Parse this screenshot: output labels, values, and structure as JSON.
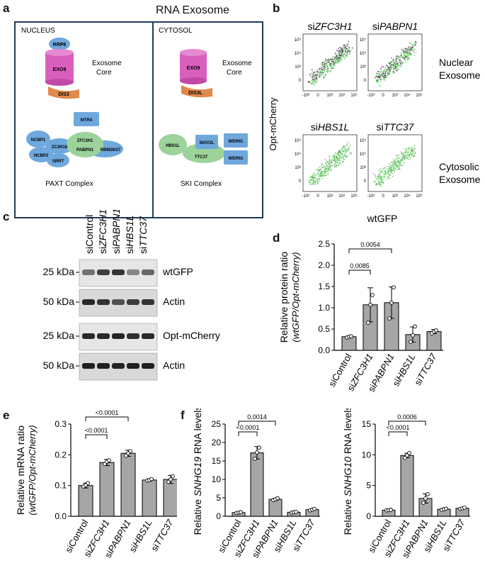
{
  "panels": {
    "a": {
      "label": "a",
      "title": "RNA Exosome",
      "nucleus": {
        "heading": "NUCLEUS",
        "cap": "RRP6",
        "cylinder": "EXO9",
        "base": "DIS3",
        "core_label_1": "Exosome",
        "core_label_2": "Core",
        "complex": [
          "NCBP1",
          "NCBP2",
          "ZC3H18",
          "SRRT",
          "MTR4",
          "ZFC3H1",
          "PABPN1",
          "RBM26/27"
        ],
        "complex_name": "PAXT Complex"
      },
      "cytosol": {
        "heading": "CYTOSOL",
        "cylinder": "EXO9",
        "base": "DIS3L",
        "core_label_1": "Exosome",
        "core_label_2": "Core",
        "complex": [
          "HBS1L",
          "SKIV2L",
          "TTC37",
          "WDR61",
          "WDR61"
        ],
        "complex_name": "SKI Complex"
      }
    },
    "b": {
      "label": "b",
      "ylabel": "Opt-mCherry",
      "xlabel": "wtGFP",
      "plots": [
        {
          "prefix": "si",
          "gene": "ZFC3H1"
        },
        {
          "prefix": "si",
          "gene": "PABPN1"
        },
        {
          "prefix": "si",
          "gene": "HBS1L"
        },
        {
          "prefix": "si",
          "gene": "TTC37"
        }
      ],
      "side_labels": [
        [
          "Nuclear",
          "Exosome"
        ],
        [
          "Cytosolic",
          "Exosome"
        ]
      ],
      "ticks_y": [
        "10⁵",
        "10⁴",
        "10³",
        "0"
      ],
      "ticks_x": [
        "-10³",
        "0",
        "10³",
        "10⁴",
        "10⁵"
      ]
    },
    "c": {
      "label": "c",
      "lanes": [
        {
          "prefix": "si",
          "gene": "Control",
          "italic": false
        },
        {
          "prefix": "si",
          "gene": "ZFC3H1",
          "italic": true
        },
        {
          "prefix": "si",
          "gene": "PABPN1",
          "italic": true
        },
        {
          "prefix": "si",
          "gene": "HBS1L",
          "italic": true
        },
        {
          "prefix": "si",
          "gene": "TTC37",
          "italic": true
        }
      ],
      "blots": [
        {
          "mw": "25 kDa",
          "name": "wtGFP"
        },
        {
          "mw": "50 kDa",
          "name": "Actin"
        },
        {
          "mw": "25 kDa",
          "name": "Opt-mCherry"
        },
        {
          "mw": "50 kDa",
          "name": "Actin"
        }
      ]
    }
  },
  "chart_data": [
    {
      "id": "d",
      "type": "bar",
      "ylabel": "Relative protein ratio",
      "ylabel2": "(wtGFP/Opt-mCherry)",
      "categories": [
        "siControl",
        "siZFC3H1",
        "siPABPN1",
        "siHBS1L",
        "siTTC37"
      ],
      "values": [
        0.32,
        1.07,
        1.12,
        0.37,
        0.44
      ],
      "errors": [
        0.02,
        0.4,
        0.37,
        0.18,
        0.05
      ],
      "points": [
        [
          0.3,
          0.32,
          0.33
        ],
        [
          0.65,
          1.07,
          1.3
        ],
        [
          0.75,
          1.12,
          1.48
        ],
        [
          0.2,
          0.35,
          0.56
        ],
        [
          0.4,
          0.44,
          0.47
        ]
      ],
      "ylim": [
        0,
        2.5
      ],
      "yticks": [
        "0.0",
        "0.5",
        "1.0",
        "1.5",
        "2.0",
        "2.5"
      ],
      "brackets": [
        {
          "from": 0,
          "to": 1,
          "label": "0.0085"
        },
        {
          "from": 0,
          "to": 2,
          "label": "0.0054"
        }
      ]
    },
    {
      "id": "e",
      "type": "bar",
      "ylabel": "Relative mRNA ratio",
      "ylabel2": "(wtGFP/Opt-mCherry)",
      "categories": [
        "siControl",
        "siZFC3H1",
        "siPABPN1",
        "siHBS1L",
        "siTTC37"
      ],
      "values": [
        0.1,
        0.175,
        0.205,
        0.118,
        0.12
      ],
      "errors": [
        0.008,
        0.01,
        0.01,
        0.004,
        0.013
      ],
      "points": [
        [
          0.097,
          0.101,
          0.108
        ],
        [
          0.17,
          0.178,
          0.182
        ],
        [
          0.197,
          0.205,
          0.212
        ],
        [
          0.116,
          0.118,
          0.121
        ],
        [
          0.112,
          0.12,
          0.13
        ]
      ],
      "ylim": [
        0,
        0.3
      ],
      "yticks": [
        "0.0",
        "0.1",
        "0.2",
        "0.3"
      ],
      "brackets": [
        {
          "from": 0,
          "to": 1,
          "label": "<0.0001"
        },
        {
          "from": 0,
          "to": 2,
          "label": "<0.0001"
        }
      ]
    },
    {
      "id": "f1",
      "type": "bar",
      "ylabel": "Relative SNHG19 RNA levels",
      "categories": [
        "siControl",
        "siZFC3H1",
        "siPABPN1",
        "siHBS1L",
        "siTTC37"
      ],
      "values": [
        1.0,
        17.2,
        4.6,
        1.1,
        1.8
      ],
      "errors": [
        0.2,
        1.7,
        0.3,
        0.15,
        0.2
      ],
      "points": [
        [
          0.9,
          1.0,
          1.1
        ],
        [
          15.6,
          17.3,
          18.6
        ],
        [
          4.4,
          4.6,
          4.9
        ],
        [
          1.0,
          1.1,
          1.2
        ],
        [
          1.6,
          1.8,
          2.0
        ]
      ],
      "ylim": [
        0,
        25
      ],
      "yticks": [
        "0",
        "5",
        "10",
        "15",
        "20",
        "25"
      ],
      "brackets": [
        {
          "from": 0,
          "to": 1,
          "label": "<0.0001"
        },
        {
          "from": 0,
          "to": 2,
          "label": "0.0014"
        }
      ]
    },
    {
      "id": "f2",
      "type": "bar",
      "ylabel": "Relative SNHG10 RNA levels",
      "categories": [
        "siControl",
        "siZFC3H1",
        "siPABPN1",
        "siHBS1L",
        "siTTC37"
      ],
      "values": [
        1.0,
        9.9,
        2.9,
        1.15,
        1.3
      ],
      "errors": [
        0.1,
        0.35,
        0.75,
        0.1,
        0.12
      ],
      "points": [
        [
          0.95,
          1.0,
          1.05
        ],
        [
          9.5,
          9.9,
          10.3
        ],
        [
          2.2,
          2.9,
          3.6
        ],
        [
          1.05,
          1.15,
          1.25
        ],
        [
          1.2,
          1.3,
          1.4
        ]
      ],
      "ylim": [
        0,
        15
      ],
      "yticks": [
        "0",
        "5",
        "10",
        "15"
      ],
      "brackets": [
        {
          "from": 0,
          "to": 1,
          "label": "<0.0001"
        },
        {
          "from": 0,
          "to": 2,
          "label": "0.0006"
        }
      ]
    }
  ],
  "panel_labels": {
    "d": "d",
    "e": "e",
    "f": "f"
  },
  "colors": {
    "bar": "#a6a6a6",
    "frame": "#1f3b5c",
    "blue_protein": "#6fa8dc",
    "green_protein": "#9bd39b",
    "orange_protein": "#e08a4b",
    "cylinder": "#d95fbd"
  }
}
